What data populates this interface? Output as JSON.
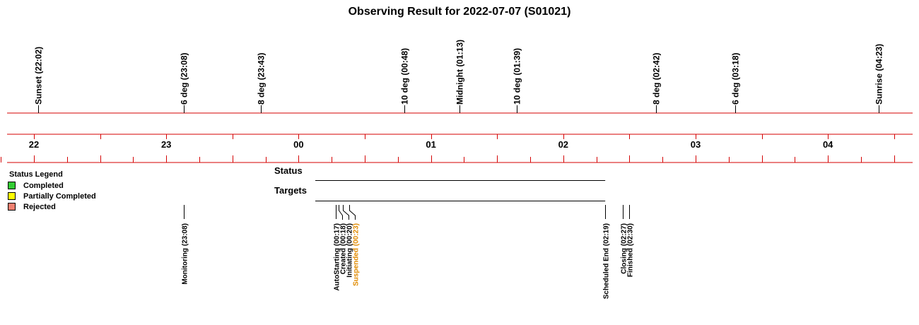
{
  "chart_data": {
    "type": "timeline",
    "title": "Observing Result for 2022-07-07 (S01021)",
    "axis": {
      "start_hour": 21.75,
      "end_hour": 28.65,
      "tick_labels": [
        "22",
        "23",
        "00",
        "01",
        "02",
        "03",
        "04"
      ],
      "tick_hours": [
        22,
        23,
        24,
        25,
        26,
        27,
        28
      ],
      "minor_tick_minutes": 15
    },
    "sky_events": [
      {
        "label": "Sunset (22:02)",
        "hour": 22.033
      },
      {
        "label": "6 deg (23:08)",
        "hour": 23.133
      },
      {
        "label": "8 deg (23:43)",
        "hour": 23.717
      },
      {
        "label": "10 deg (00:48)",
        "hour": 24.8
      },
      {
        "label": "Midnight (01:13)",
        "hour": 25.217
      },
      {
        "label": "10 deg (01:39)",
        "hour": 25.65
      },
      {
        "label": "8 deg (02:42)",
        "hour": 26.7
      },
      {
        "label": "6 deg (03:18)",
        "hour": 27.3
      },
      {
        "label": "Sunrise (04:23)",
        "hour": 28.383
      }
    ],
    "legend": {
      "title": "Status Legend",
      "position": "left",
      "items": [
        {
          "label": "Completed",
          "color": "#33cc33"
        },
        {
          "label": "Partially Completed",
          "color": "#ffff00"
        },
        {
          "label": "Rejected",
          "color": "#f08070"
        }
      ]
    },
    "rows": {
      "status_label": "Status",
      "targets_label": "Targets",
      "start_hour": 24.133,
      "end_hour": 26.317
    },
    "status_events": [
      {
        "label": "Monitoring (23:08)",
        "hour": 23.133,
        "color": "#000000"
      },
      {
        "label": "AutoStarting (00:17)",
        "hour": 24.283,
        "color": "#000000"
      },
      {
        "label": "Created (00:18)",
        "hour": 24.3,
        "color": "#000000"
      },
      {
        "label": "Initiating (00:20)",
        "hour": 24.333,
        "color": "#000000"
      },
      {
        "label": "Suspended (00:23)",
        "hour": 24.383,
        "color": "#e08a00"
      },
      {
        "label": "Scheduled End (02:19)",
        "hour": 26.317,
        "color": "#000000"
      },
      {
        "label": "Closing (02:27)",
        "hour": 26.45,
        "color": "#000000"
      },
      {
        "label": "Finished (02:30)",
        "hour": 26.5,
        "color": "#000000"
      }
    ]
  }
}
